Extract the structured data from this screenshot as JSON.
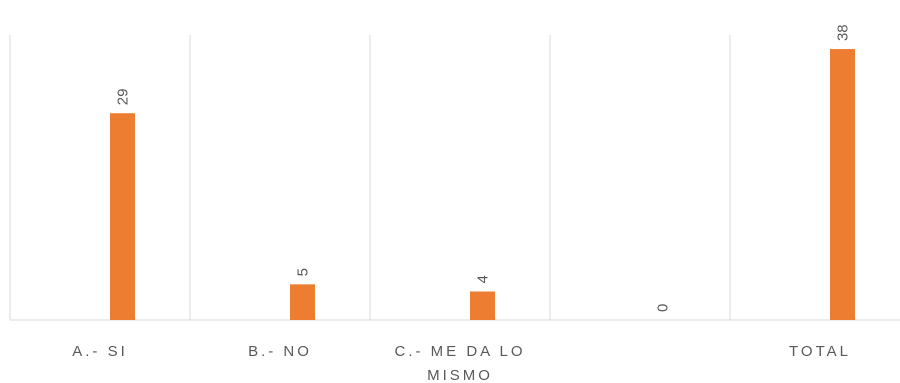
{
  "chart_data": {
    "type": "bar",
    "categories": [
      [
        "A.- SI"
      ],
      [
        "B.- NO"
      ],
      [
        "C.- ME DA LO",
        "MISMO"
      ],
      [
        ""
      ],
      [
        "TOTAL"
      ]
    ],
    "series": [
      {
        "values": [
          29,
          5,
          4,
          0,
          38
        ]
      }
    ],
    "ylim": [
      0,
      40
    ],
    "grid": "vertical",
    "legend": "none",
    "colors": {
      "bar": "#ED7D31",
      "gridline": "#D9D9D9",
      "axis": "#D9D9D9",
      "text": "#595959"
    }
  }
}
